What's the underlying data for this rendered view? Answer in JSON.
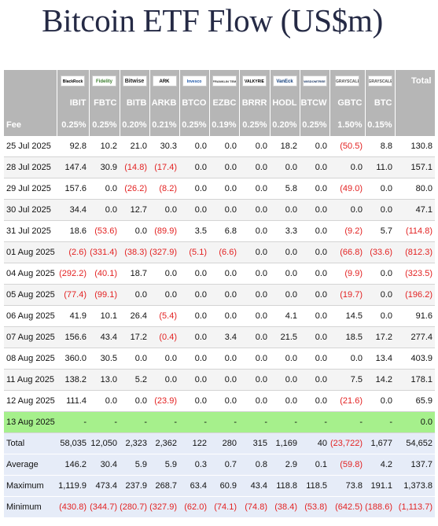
{
  "title": "Bitcoin ETF Flow (US$m)",
  "colors": {
    "header_bg": "#b6b6b6",
    "today_bg": "#a6f08c",
    "summary_bg": "#e6ecf8",
    "negative": "#e32222"
  },
  "header": {
    "total_label": "Total",
    "fee_label": "Fee",
    "logos": [
      {
        "name": "blackrock-logo",
        "cls": "blackrock",
        "text": "BlackRock"
      },
      {
        "name": "fidelity-logo",
        "cls": "fidelity",
        "text": "Fidelity"
      },
      {
        "name": "bitwise-logo",
        "cls": "bitwise",
        "text": "Bitwise"
      },
      {
        "name": "ark-logo",
        "cls": "ark",
        "text": "ARK"
      },
      {
        "name": "invesco-logo",
        "cls": "invesco",
        "text": "Invesco"
      },
      {
        "name": "franklin-templeton-logo",
        "cls": "franklin",
        "text": "FRANKLIN TEMPLETON"
      },
      {
        "name": "valkyrie-logo",
        "cls": "valkyrie",
        "text": "VALKYRIE"
      },
      {
        "name": "vaneck-logo",
        "cls": "vaneck",
        "text": "VanEck"
      },
      {
        "name": "wisdomtree-logo",
        "cls": "wisdomtree",
        "text": "WISDOMTREE"
      },
      {
        "name": "grayscale-gbtc-logo",
        "cls": "grayscale",
        "text": "GRAYSCALE"
      },
      {
        "name": "grayscale-btc-logo",
        "cls": "grayscale",
        "text": "GRAYSCALE"
      }
    ],
    "tickers": [
      "IBIT",
      "FBTC",
      "BITB",
      "ARKB",
      "BTCO",
      "EZBC",
      "BRRR",
      "HODL",
      "BTCW",
      "GBTC",
      "BTC"
    ],
    "fees": [
      "0.25%",
      "0.25%",
      "0.20%",
      "0.21%",
      "0.25%",
      "0.19%",
      "0.25%",
      "0.20%",
      "0.25%",
      "1.50%",
      "0.15%"
    ]
  },
  "rows": [
    {
      "date": "25 Jul 2025",
      "values": [
        "92.8",
        "10.2",
        "21.0",
        "30.3",
        "0.0",
        "0.0",
        "0.0",
        "18.2",
        "0.0",
        "(50.5)",
        "8.8",
        "130.8"
      ]
    },
    {
      "date": "28 Jul 2025",
      "values": [
        "147.4",
        "30.9",
        "(14.8)",
        "(17.4)",
        "0.0",
        "0.0",
        "0.0",
        "0.0",
        "0.0",
        "0.0",
        "11.0",
        "157.1"
      ]
    },
    {
      "date": "29 Jul 2025",
      "values": [
        "157.6",
        "0.0",
        "(26.2)",
        "(8.2)",
        "0.0",
        "0.0",
        "0.0",
        "5.8",
        "0.0",
        "(49.0)",
        "0.0",
        "80.0"
      ]
    },
    {
      "date": "30 Jul 2025",
      "values": [
        "34.4",
        "0.0",
        "12.7",
        "0.0",
        "0.0",
        "0.0",
        "0.0",
        "0.0",
        "0.0",
        "0.0",
        "0.0",
        "47.1"
      ]
    },
    {
      "date": "31 Jul 2025",
      "values": [
        "18.6",
        "(53.6)",
        "0.0",
        "(89.9)",
        "3.5",
        "6.8",
        "0.0",
        "3.3",
        "0.0",
        "(9.2)",
        "5.7",
        "(114.8)"
      ]
    },
    {
      "date": "01 Aug 2025",
      "values": [
        "(2.6)",
        "(331.4)",
        "(38.3)",
        "(327.9)",
        "(5.1)",
        "(6.6)",
        "0.0",
        "0.0",
        "0.0",
        "(66.8)",
        "(33.6)",
        "(812.3)"
      ]
    },
    {
      "date": "04 Aug 2025",
      "values": [
        "(292.2)",
        "(40.1)",
        "18.7",
        "0.0",
        "0.0",
        "0.0",
        "0.0",
        "0.0",
        "0.0",
        "(9.9)",
        "0.0",
        "(323.5)"
      ]
    },
    {
      "date": "05 Aug 2025",
      "values": [
        "(77.4)",
        "(99.1)",
        "0.0",
        "0.0",
        "0.0",
        "0.0",
        "0.0",
        "0.0",
        "0.0",
        "(19.7)",
        "0.0",
        "(196.2)"
      ]
    },
    {
      "date": "06 Aug 2025",
      "values": [
        "41.9",
        "10.1",
        "26.4",
        "(5.4)",
        "0.0",
        "0.0",
        "0.0",
        "4.1",
        "0.0",
        "14.5",
        "0.0",
        "91.6"
      ]
    },
    {
      "date": "07 Aug 2025",
      "values": [
        "156.6",
        "43.4",
        "17.2",
        "(0.4)",
        "0.0",
        "3.4",
        "0.0",
        "21.5",
        "0.0",
        "18.5",
        "17.2",
        "277.4"
      ]
    },
    {
      "date": "08 Aug 2025",
      "values": [
        "360.0",
        "30.5",
        "0.0",
        "0.0",
        "0.0",
        "0.0",
        "0.0",
        "0.0",
        "0.0",
        "0.0",
        "13.4",
        "403.9"
      ]
    },
    {
      "date": "11 Aug 2025",
      "values": [
        "138.2",
        "13.0",
        "5.2",
        "0.0",
        "0.0",
        "0.0",
        "0.0",
        "0.0",
        "0.0",
        "7.5",
        "14.2",
        "178.1"
      ]
    },
    {
      "date": "12 Aug 2025",
      "values": [
        "111.4",
        "0.0",
        "0.0",
        "(23.9)",
        "0.0",
        "0.0",
        "0.0",
        "0.0",
        "0.0",
        "(21.6)",
        "0.0",
        "65.9"
      ]
    }
  ],
  "today": {
    "date": "13 Aug 2025",
    "values": [
      "-",
      "-",
      "-",
      "-",
      "-",
      "-",
      "-",
      "-",
      "-",
      "-",
      "-",
      "0.0"
    ]
  },
  "summary": [
    {
      "label": "Total",
      "values": [
        "58,035",
        "12,050",
        "2,323",
        "2,362",
        "122",
        "280",
        "315",
        "1,169",
        "40",
        "(23,722)",
        "1,677",
        "54,652"
      ]
    },
    {
      "label": "Average",
      "values": [
        "146.2",
        "30.4",
        "5.9",
        "5.9",
        "0.3",
        "0.7",
        "0.8",
        "2.9",
        "0.1",
        "(59.8)",
        "4.2",
        "137.7"
      ]
    },
    {
      "label": "Maximum",
      "values": [
        "1,119.9",
        "473.4",
        "237.9",
        "268.7",
        "63.4",
        "60.9",
        "43.4",
        "118.8",
        "118.5",
        "73.8",
        "191.1",
        "1,373.8"
      ]
    },
    {
      "label": "Minimum",
      "values": [
        "(430.8)",
        "(344.7)",
        "(280.7)",
        "(327.9)",
        "(62.0)",
        "(74.1)",
        "(74.8)",
        "(38.4)",
        "(53.8)",
        "(642.5)",
        "(188.6)",
        "(1,113.7)"
      ]
    }
  ]
}
